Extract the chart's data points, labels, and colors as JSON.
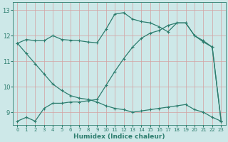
{
  "xlabel": "Humidex (Indice chaleur)",
  "ylabel": "",
  "background_color": "#cde8e8",
  "grid_color": "#b8d4d4",
  "line_color": "#2d7d6e",
  "xlim": [
    -0.5,
    23.5
  ],
  "ylim": [
    8.5,
    13.3
  ],
  "xticks": [
    0,
    1,
    2,
    3,
    4,
    5,
    6,
    7,
    8,
    9,
    10,
    11,
    12,
    13,
    14,
    15,
    16,
    17,
    18,
    19,
    20,
    21,
    22,
    23
  ],
  "yticks": [
    9,
    10,
    11,
    12,
    13
  ],
  "line1_x": [
    0,
    1,
    2,
    3,
    4,
    5,
    6,
    7,
    8,
    9,
    10,
    11,
    12,
    13,
    14,
    15,
    16,
    17,
    18,
    19,
    20,
    21,
    22,
    23
  ],
  "line1_y": [
    11.7,
    11.85,
    11.8,
    11.8,
    12.0,
    11.85,
    11.82,
    11.8,
    11.75,
    11.72,
    12.25,
    12.85,
    12.9,
    12.65,
    12.55,
    12.5,
    12.35,
    12.15,
    12.5,
    12.5,
    12.0,
    11.75,
    11.55,
    8.65
  ],
  "line2_x": [
    0,
    1,
    2,
    3,
    4,
    5,
    6,
    7,
    8,
    9,
    10,
    11,
    12,
    13,
    14,
    15,
    16,
    17,
    18,
    19,
    20,
    21,
    22,
    23
  ],
  "line2_y": [
    8.65,
    8.8,
    8.65,
    9.15,
    9.35,
    9.35,
    9.4,
    9.4,
    9.45,
    9.5,
    10.05,
    10.6,
    11.1,
    11.55,
    11.9,
    12.1,
    12.2,
    12.4,
    12.5,
    12.5,
    12.0,
    11.8,
    11.55,
    8.65
  ],
  "line3_x": [
    0,
    1,
    2,
    3,
    4,
    5,
    6,
    7,
    8,
    9,
    10,
    11,
    12,
    13,
    14,
    15,
    16,
    17,
    18,
    19,
    20,
    21,
    22,
    23
  ],
  "line3_y": [
    11.7,
    11.3,
    10.9,
    10.5,
    10.1,
    9.85,
    9.65,
    9.55,
    9.5,
    9.4,
    9.25,
    9.15,
    9.1,
    9.0,
    9.05,
    9.1,
    9.15,
    9.2,
    9.25,
    9.3,
    9.1,
    9.0,
    8.8,
    8.65
  ]
}
